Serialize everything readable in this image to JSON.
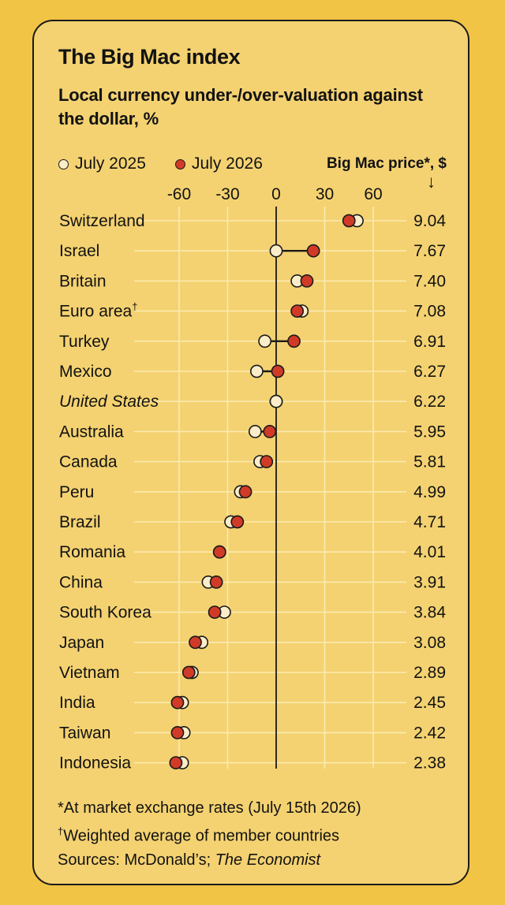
{
  "header": {
    "title": "The Big Mac index",
    "subtitle": "Local currency under-/over-valuation against the dollar, %"
  },
  "legend": {
    "series_2025": "July 2025",
    "series_2026": "July 2026",
    "price_label": "Big Mac price*, $",
    "price_arrow": "↓"
  },
  "colors": {
    "background": "#f1c445",
    "panel": "#f4d271",
    "dot_2025": "#fbedc9",
    "dot_2026": "#d23a28",
    "outline": "#1a1a1a",
    "gridline": "#fbeab0"
  },
  "chart_data": {
    "type": "dot",
    "title": "The Big Mac index",
    "subtitle": "Local currency under-/over-valuation against the dollar, %",
    "x_ticks": [
      -60,
      -30,
      0,
      30,
      60
    ],
    "xlim": [
      -60,
      60
    ],
    "grid": true,
    "legend_position": "top",
    "categories": [
      "Switzerland",
      "Israel",
      "Britain",
      "Euro area",
      "Turkey",
      "Mexico",
      "United States",
      "Australia",
      "Canada",
      "Peru",
      "Brazil",
      "Romania",
      "China",
      "South Korea",
      "Japan",
      "Vietnam",
      "India",
      "Taiwan",
      "Indonesia"
    ],
    "category_marks": [
      "",
      "",
      "",
      "†",
      "",
      "",
      "",
      "",
      "",
      "",
      "",
      "",
      "",
      "",
      "",
      "",
      "",
      "",
      ""
    ],
    "italic_categories": [
      "United States"
    ],
    "series": [
      {
        "name": "July 2025",
        "values": [
          50,
          0,
          13,
          16,
          -7,
          -12,
          0,
          -13,
          -10,
          -22,
          -28,
          -35,
          -42,
          -32,
          -46,
          -52,
          -58,
          -57,
          -58
        ]
      },
      {
        "name": "July 2026",
        "values": [
          45,
          23,
          19,
          13,
          11,
          1,
          0,
          -4,
          -6,
          -19,
          -24,
          -35,
          -37,
          -38,
          -50,
          -54,
          -61,
          -61,
          -62
        ]
      }
    ],
    "price_usd": [
      "9.04",
      "7.67",
      "7.40",
      "7.08",
      "6.91",
      "6.27",
      "6.22",
      "5.95",
      "5.81",
      "4.99",
      "4.71",
      "4.01",
      "3.91",
      "3.84",
      "3.08",
      "2.89",
      "2.45",
      "2.42",
      "2.38"
    ]
  },
  "footnotes": {
    "note1": "*At market exchange rates (July 15th 2026)",
    "note2_mark": "†",
    "note2": "Weighted average of member countries",
    "sources_prefix": "Sources: McDonald’s; ",
    "sources_italic": "The Economist"
  }
}
